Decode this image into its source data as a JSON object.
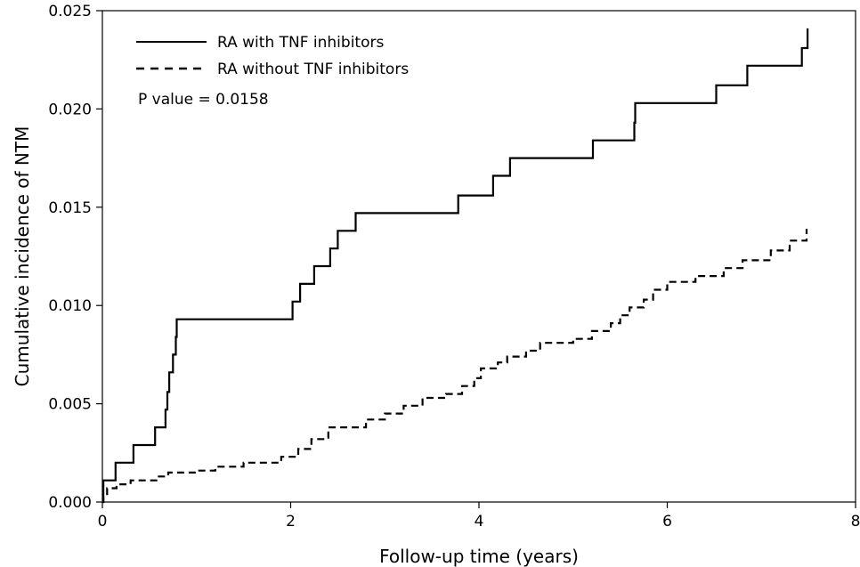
{
  "chart_data": {
    "type": "line",
    "xlabel": "Follow-up time (years)",
    "ylabel": "Cumulative incidence of NTM",
    "xlim": [
      0,
      8
    ],
    "ylim": [
      0,
      0.025
    ],
    "x_ticks": [
      0,
      2,
      4,
      6,
      8
    ],
    "x_tick_labels": [
      "0",
      "2",
      "4",
      "6",
      "8"
    ],
    "y_ticks": [
      0,
      0.005,
      0.01,
      0.015,
      0.02,
      0.025
    ],
    "y_tick_labels": [
      "0.000",
      "0.005",
      "0.010",
      "0.015",
      "0.020",
      "0.025"
    ],
    "grid": false,
    "legend_position": "top-left",
    "annotation": "P value = 0.0158",
    "series": [
      {
        "name": "RA with TNF inhibitors",
        "style": "solid",
        "color": "#000000",
        "step": true,
        "x": [
          0,
          0.01,
          0.14,
          0.33,
          0.56,
          0.67,
          0.69,
          0.71,
          0.75,
          0.78,
          0.79,
          2.02,
          2.1,
          2.25,
          2.42,
          2.5,
          2.69,
          3.78,
          4.15,
          4.33,
          5.21,
          5.65,
          5.66,
          6.52,
          6.85,
          7.43,
          7.49,
          7.49
        ],
        "y": [
          0,
          0.0011,
          0.002,
          0.0029,
          0.0038,
          0.0047,
          0.0056,
          0.0066,
          0.0075,
          0.0084,
          0.0093,
          0.0102,
          0.0111,
          0.012,
          0.0129,
          0.0138,
          0.0147,
          0.0156,
          0.0166,
          0.0175,
          0.0184,
          0.0193,
          0.0203,
          0.0212,
          0.0222,
          0.0231,
          0.0238,
          0.0241
        ]
      },
      {
        "name": "RA without TNF inhibitors",
        "style": "dashed",
        "color": "#000000",
        "step": true,
        "x": [
          0,
          0.01,
          0.05,
          0.15,
          0.3,
          0.6,
          0.7,
          1.0,
          1.2,
          1.5,
          1.9,
          2.08,
          2.22,
          2.4,
          2.8,
          3.0,
          3.2,
          3.4,
          3.65,
          3.82,
          3.95,
          4.02,
          4.2,
          4.3,
          4.5,
          4.65,
          5.0,
          5.2,
          5.4,
          5.5,
          5.6,
          5.75,
          5.85,
          6.0,
          6.3,
          6.6,
          6.8,
          7.1,
          7.3,
          7.48
        ],
        "y": [
          0,
          0.0003,
          0.0007,
          0.0009,
          0.0011,
          0.0013,
          0.0015,
          0.0016,
          0.0018,
          0.002,
          0.0023,
          0.0027,
          0.0032,
          0.0038,
          0.0042,
          0.0045,
          0.0049,
          0.0053,
          0.0055,
          0.0059,
          0.0063,
          0.0068,
          0.0071,
          0.0074,
          0.0077,
          0.0081,
          0.0083,
          0.0087,
          0.0091,
          0.0095,
          0.0099,
          0.0103,
          0.0108,
          0.0112,
          0.0115,
          0.0119,
          0.0123,
          0.0128,
          0.0133,
          0.0139
        ]
      }
    ]
  }
}
